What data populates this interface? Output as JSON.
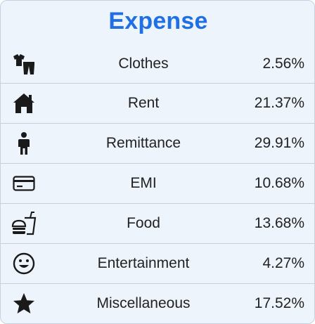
{
  "title": "Expense",
  "title_color": "#1f6fe6",
  "rows": [
    {
      "icon": "clothes-icon",
      "label": "Clothes",
      "percent": "2.56%"
    },
    {
      "icon": "house-icon",
      "label": "Rent",
      "percent": "21.37%"
    },
    {
      "icon": "person-icon",
      "label": "Remittance",
      "percent": "29.91%"
    },
    {
      "icon": "credit-card-icon",
      "label": "EMI",
      "percent": "10.68%"
    },
    {
      "icon": "fast-food-icon",
      "label": "Food",
      "percent": "13.68%"
    },
    {
      "icon": "smiley-icon",
      "label": "Entertainment",
      "percent": "4.27%"
    },
    {
      "icon": "star-icon",
      "label": "Miscellaneous",
      "percent": "17.52%"
    }
  ]
}
